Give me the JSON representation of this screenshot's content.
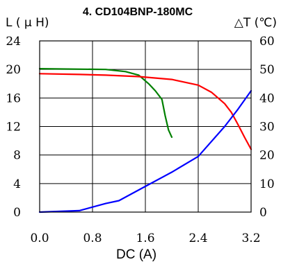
{
  "chart_data": {
    "type": "line",
    "title": "4. CD104BNP-180MC",
    "xlabel": "DC (A)",
    "ylabel_left": "L ( μ H)",
    "ylabel_right": "△T (℃)",
    "xlim": [
      0,
      3.2
    ],
    "ylim_left": [
      0,
      24
    ],
    "ylim_right": [
      0,
      60
    ],
    "x_ticks": [
      "0.0",
      "0.8",
      "1.6",
      "2.4",
      "3.2"
    ],
    "y_ticks_left": [
      "0",
      "4",
      "8",
      "12",
      "16",
      "20",
      "24"
    ],
    "y_ticks_right": [
      "0",
      "10",
      "20",
      "30",
      "40",
      "50",
      "60"
    ],
    "grid": true,
    "series": [
      {
        "color": "#008000",
        "axis": "left",
        "points": [
          [
            0,
            20.1
          ],
          [
            1.0,
            20.0
          ],
          [
            1.3,
            19.7
          ],
          [
            1.5,
            19.2
          ],
          [
            1.65,
            18.0
          ],
          [
            1.75,
            17.0
          ],
          [
            1.85,
            15.8
          ],
          [
            1.9,
            13.5
          ],
          [
            1.95,
            11.5
          ],
          [
            2.0,
            10.5
          ]
        ]
      },
      {
        "color": "#ff0000",
        "axis": "left",
        "points": [
          [
            0,
            19.4
          ],
          [
            0.6,
            19.3
          ],
          [
            1.0,
            19.2
          ],
          [
            1.5,
            19.0
          ],
          [
            2.0,
            18.6
          ],
          [
            2.4,
            17.8
          ],
          [
            2.6,
            16.8
          ],
          [
            2.8,
            15.2
          ],
          [
            2.9,
            14.0
          ],
          [
            3.0,
            12.3
          ],
          [
            3.1,
            10.5
          ],
          [
            3.2,
            8.8
          ]
        ]
      },
      {
        "color": "#0000ff",
        "axis": "right",
        "points": [
          [
            0,
            0
          ],
          [
            0.6,
            0.5
          ],
          [
            1.0,
            3.0
          ],
          [
            1.2,
            4.0
          ],
          [
            1.6,
            9.0
          ],
          [
            2.0,
            14.0
          ],
          [
            2.4,
            19.5
          ],
          [
            2.8,
            30.0
          ],
          [
            3.0,
            36.0
          ],
          [
            3.2,
            42.5
          ]
        ]
      }
    ]
  }
}
